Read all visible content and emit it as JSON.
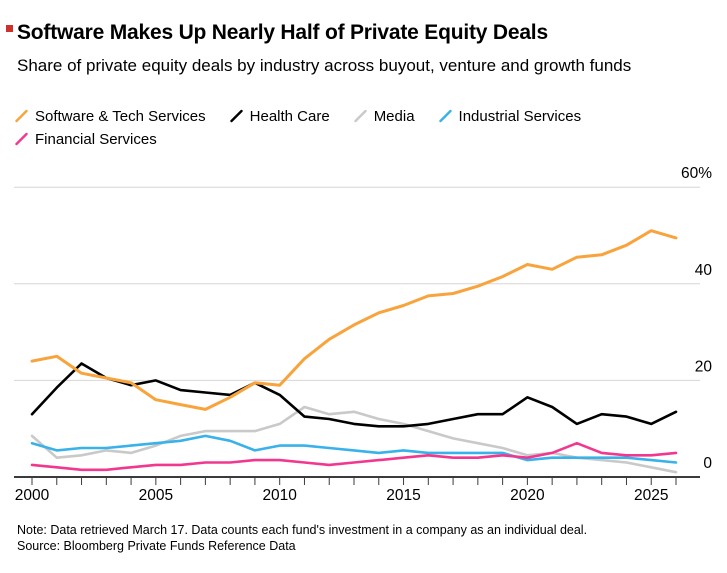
{
  "header": {
    "brand_mark_color": "#ce3129",
    "title": "Software Makes Up Nearly Half of Private Equity Deals",
    "subtitle": "Share of private equity deals by industry across buyout, venture and growth funds"
  },
  "legend": {
    "items": [
      {
        "label": "Software & Tech Services",
        "color": "#f8a33b"
      },
      {
        "label": "Health Care",
        "color": "#000000"
      },
      {
        "label": "Media",
        "color": "#c9c9c9"
      },
      {
        "label": "Industrial Services",
        "color": "#38b2e9"
      },
      {
        "label": "Financial Services",
        "color": "#f2378f"
      }
    ]
  },
  "chart_data": {
    "type": "line",
    "x": [
      2000,
      2001,
      2002,
      2003,
      2004,
      2005,
      2006,
      2007,
      2008,
      2009,
      2010,
      2011,
      2012,
      2013,
      2014,
      2015,
      2016,
      2017,
      2018,
      2019,
      2020,
      2021,
      2022,
      2023,
      2024,
      2025,
      2026
    ],
    "x_tick_labels": [
      "2000",
      "2005",
      "2010",
      "2015",
      "2020",
      "2025"
    ],
    "y_ticks": [
      {
        "value": 60,
        "label": "60%"
      },
      {
        "value": 40,
        "label": "40"
      },
      {
        "value": 20,
        "label": "20"
      },
      {
        "value": 0,
        "label": "0"
      }
    ],
    "xlim": [
      2000,
      2026
    ],
    "ylim": [
      0,
      62
    ],
    "grid": "horizontal",
    "legend_position": "top",
    "series": [
      {
        "name": "Software & Tech Services",
        "color": "#f8a33b",
        "values": [
          24,
          25,
          21.5,
          20.5,
          19.5,
          16,
          15,
          14,
          16.5,
          19.5,
          19,
          24.5,
          28.5,
          31.5,
          34,
          35.5,
          37.5,
          38,
          39.5,
          41.5,
          44,
          43,
          45.5,
          46,
          48,
          51,
          49.5
        ]
      },
      {
        "name": "Health Care",
        "color": "#000000",
        "values": [
          13,
          18.5,
          23.5,
          20.5,
          19,
          20,
          18,
          17.5,
          17,
          19.5,
          17,
          12.5,
          12,
          11,
          10.5,
          10.5,
          11,
          12,
          13,
          13,
          16.5,
          14.5,
          11,
          13,
          12.5,
          11,
          13.5
        ]
      },
      {
        "name": "Media",
        "color": "#c9c9c9",
        "values": [
          8.5,
          4,
          4.5,
          5.5,
          5,
          6.5,
          8.5,
          9.5,
          9.5,
          9.5,
          11,
          14.5,
          13,
          13.5,
          12,
          11,
          9.5,
          8,
          7,
          6,
          4.5,
          5,
          4,
          3.5,
          3,
          2,
          1
        ]
      },
      {
        "name": "Industrial Services",
        "color": "#38b2e9",
        "values": [
          7,
          5.5,
          6,
          6,
          6.5,
          7,
          7.5,
          8.5,
          7.5,
          5.5,
          6.5,
          6.5,
          6,
          5.5,
          5,
          5.5,
          5,
          5,
          5,
          5,
          3.5,
          4,
          4,
          4,
          4,
          3.5,
          3
        ]
      },
      {
        "name": "Financial Services",
        "color": "#f2378f",
        "values": [
          2.5,
          2,
          1.5,
          1.5,
          2,
          2.5,
          2.5,
          3,
          3,
          3.5,
          3.5,
          3,
          2.5,
          3,
          3.5,
          4,
          4.5,
          4,
          4,
          4.5,
          4,
          5,
          7,
          5,
          4.5,
          4.5,
          5
        ]
      }
    ]
  },
  "footer": {
    "note": "Note: Data retrieved March 17. Data counts each fund's investment in a company as an individual deal.",
    "source": "Source: Bloomberg Private Funds Reference Data"
  }
}
